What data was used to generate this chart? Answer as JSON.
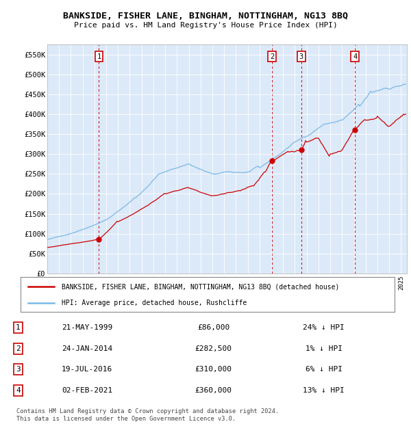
{
  "title": "BANKSIDE, FISHER LANE, BINGHAM, NOTTINGHAM, NG13 8BQ",
  "subtitle": "Price paid vs. HM Land Registry's House Price Index (HPI)",
  "legend_label_red": "BANKSIDE, FISHER LANE, BINGHAM, NOTTINGHAM, NG13 8BQ (detached house)",
  "legend_label_blue": "HPI: Average price, detached house, Rushcliffe",
  "footer": "Contains HM Land Registry data © Crown copyright and database right 2024.\nThis data is licensed under the Open Government Licence v3.0.",
  "table_rows": [
    [
      "1",
      "21-MAY-1999",
      "£86,000",
      "24% ↓ HPI"
    ],
    [
      "2",
      "24-JAN-2014",
      "£282,500",
      "1% ↓ HPI"
    ],
    [
      "3",
      "19-JUL-2016",
      "£310,000",
      "6% ↓ HPI"
    ],
    [
      "4",
      "02-FEB-2021",
      "£360,000",
      "13% ↓ HPI"
    ]
  ],
  "sale_dates": [
    1999.38,
    2014.06,
    2016.55,
    2021.09
  ],
  "sale_prices": [
    86000,
    282500,
    310000,
    360000
  ],
  "ylim": [
    0,
    575000
  ],
  "yticks": [
    0,
    50000,
    100000,
    150000,
    200000,
    250000,
    300000,
    350000,
    400000,
    450000,
    500000,
    550000
  ],
  "ytick_labels": [
    "£0",
    "£50K",
    "£100K",
    "£150K",
    "£200K",
    "£250K",
    "£300K",
    "£350K",
    "£400K",
    "£450K",
    "£500K",
    "£550K"
  ],
  "xlim_start": 1995.0,
  "xlim_end": 2025.5,
  "background_color": "#dce9f8",
  "red_color": "#cc0000",
  "blue_color": "#7ab8e8",
  "dashed_color": "#cc0000",
  "fig_width": 6.0,
  "fig_height": 6.2,
  "dpi": 100
}
